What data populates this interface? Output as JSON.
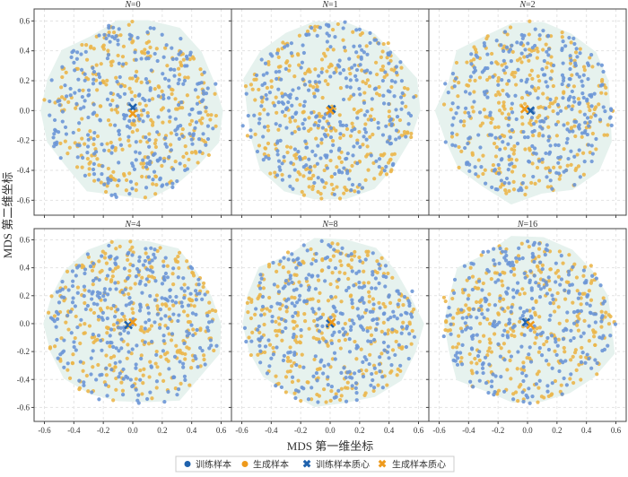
{
  "chart_data": {
    "type": "scatter",
    "xlabel": "MDS 第一维坐标",
    "ylabel": "MDS 第二维坐标",
    "xlim": [
      -0.67,
      0.67
    ],
    "ylim": [
      -0.7,
      0.68
    ],
    "xticks": [
      -0.6,
      -0.4,
      -0.2,
      0.0,
      0.2,
      0.4,
      0.6
    ],
    "yticks": [
      0.6,
      0.4,
      0.2,
      0.0,
      -0.2,
      -0.4,
      -0.6
    ],
    "xtick_labels": [
      "-0.6",
      "-0.4",
      "-0.2",
      "0.0",
      "0.2",
      "0.4",
      "0.6"
    ],
    "ytick_labels": [
      "0.6",
      "0.4",
      "0.2",
      "0.0",
      "-0.2",
      "-0.4",
      "-0.6"
    ],
    "grid": true,
    "legend_position": "bottom",
    "colors": {
      "train": "#6c96d6",
      "gen": "#ebb64a",
      "train_centroid": "#1f62ad",
      "gen_centroid": "#ee9a1c",
      "hull": "#e6f2ee"
    },
    "legend": [
      "训练样本",
      "生成样本",
      "训练样本质心",
      "生成样本质心"
    ],
    "panels": [
      {
        "title_var": "N",
        "title_value": "=0",
        "train_centroid": [
          0.0,
          0.02
        ],
        "gen_centroid": [
          0.0,
          -0.02
        ]
      },
      {
        "title_var": "N",
        "title_value": "=1",
        "train_centroid": [
          0.01,
          0.01
        ],
        "gen_centroid": [
          0.0,
          0.0
        ]
      },
      {
        "title_var": "N",
        "title_value": "=2",
        "train_centroid": [
          0.02,
          0.0
        ],
        "gen_centroid": [
          -0.02,
          0.01
        ]
      },
      {
        "title_var": "N",
        "title_value": "=4",
        "train_centroid": [
          -0.03,
          -0.01
        ],
        "gen_centroid": [
          0.0,
          0.01
        ]
      },
      {
        "title_var": "N",
        "title_value": "=8",
        "train_centroid": [
          0.0,
          0.0
        ],
        "gen_centroid": [
          0.01,
          0.01
        ]
      },
      {
        "title_var": "N",
        "title_value": "=16",
        "train_centroid": [
          -0.01,
          0.01
        ],
        "gen_centroid": [
          0.02,
          -0.01
        ]
      }
    ]
  }
}
